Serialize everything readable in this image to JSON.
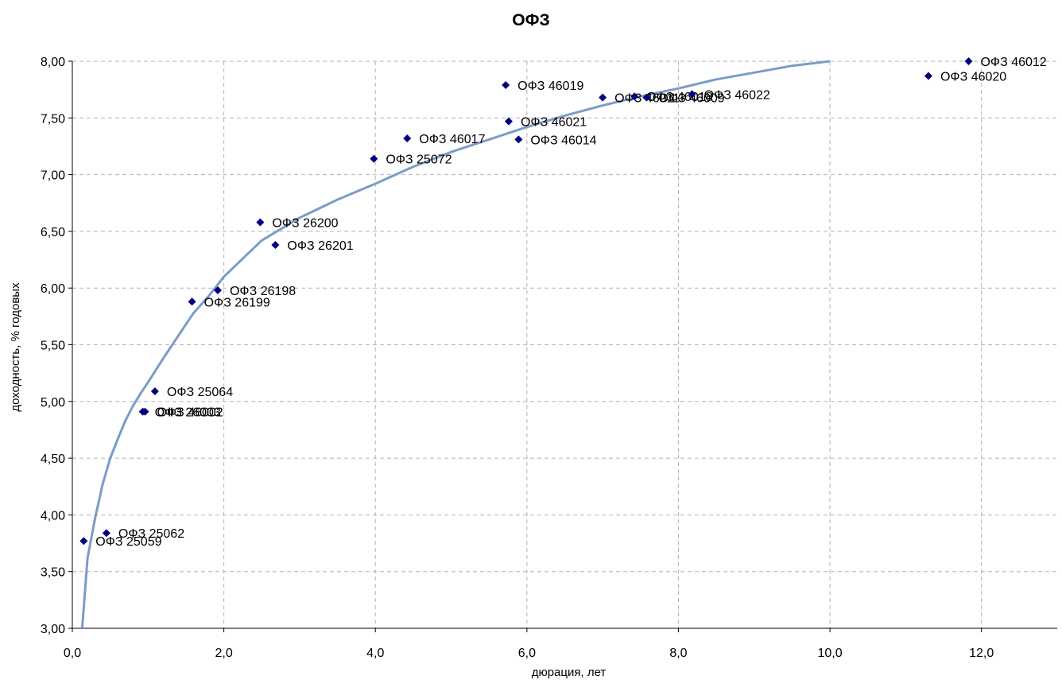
{
  "chart_data": {
    "type": "scatter",
    "title": "ОФЗ",
    "xlabel": "дюрация, лет",
    "ylabel": "доходность, % годовых",
    "xlim": [
      0,
      13
    ],
    "ylim": [
      3.0,
      8.0
    ],
    "x_ticks": [
      "0,0",
      "2,0",
      "4,0",
      "6,0",
      "8,0",
      "10,0",
      "12,0"
    ],
    "x_tick_values": [
      0,
      2,
      4,
      6,
      8,
      10,
      12
    ],
    "y_ticks": [
      "3,00",
      "3,50",
      "4,00",
      "4,50",
      "5,00",
      "5,50",
      "6,00",
      "6,50",
      "7,00",
      "7,50",
      "8,00"
    ],
    "y_tick_values": [
      3.0,
      3.5,
      4.0,
      4.5,
      5.0,
      5.5,
      6.0,
      6.5,
      7.0,
      7.5,
      8.0
    ],
    "grid": true,
    "colors": {
      "points": "#00007f",
      "trend": "#7b9cc7",
      "grid": "#b3b3b3"
    },
    "points": [
      {
        "label": "ОФЗ 25059",
        "x": 0.15,
        "y": 3.77
      },
      {
        "label": "ОФЗ 25062",
        "x": 0.45,
        "y": 3.84
      },
      {
        "label": "ОФЗ 26003",
        "x": 0.93,
        "y": 4.91
      },
      {
        "label": "ОФЗ 46002",
        "x": 0.96,
        "y": 4.91
      },
      {
        "label": "ОФЗ 25064",
        "x": 1.09,
        "y": 5.09
      },
      {
        "label": "ОФЗ 26199",
        "x": 1.58,
        "y": 5.88
      },
      {
        "label": "ОФЗ 26198",
        "x": 1.92,
        "y": 5.98
      },
      {
        "label": "ОФЗ 26200",
        "x": 2.48,
        "y": 6.58
      },
      {
        "label": "ОФЗ 26201",
        "x": 2.68,
        "y": 6.38
      },
      {
        "label": "ОФЗ 25072",
        "x": 3.98,
        "y": 7.14
      },
      {
        "label": "ОФЗ 46017",
        "x": 4.42,
        "y": 7.32
      },
      {
        "label": "ОФЗ 46019",
        "x": 5.72,
        "y": 7.79
      },
      {
        "label": "ОФЗ 46021",
        "x": 5.76,
        "y": 7.47
      },
      {
        "label": "ОФЗ 46014",
        "x": 5.89,
        "y": 7.31
      },
      {
        "label": "ОФЗ 46011",
        "x": 7.0,
        "y": 7.68
      },
      {
        "label": "ОФЗ 46018",
        "x": 7.42,
        "y": 7.69
      },
      {
        "label": "ОФЗ 46009",
        "x": 7.58,
        "y": 7.68
      },
      {
        "label": "ОФЗ 46022",
        "x": 8.18,
        "y": 7.71
      },
      {
        "label": "ОФЗ 46020",
        "x": 11.3,
        "y": 7.87
      },
      {
        "label": "ОФЗ 46012",
        "x": 11.83,
        "y": 8.0
      }
    ],
    "trend": {
      "type": "line",
      "x": [
        0.13,
        0.2,
        0.3,
        0.4,
        0.5,
        0.6,
        0.7,
        0.8,
        0.9,
        1.0,
        1.2,
        1.4,
        1.6,
        1.8,
        2.0,
        2.5,
        3.0,
        3.5,
        4.0,
        4.5,
        5.0,
        5.5,
        6.0,
        6.5,
        7.0,
        7.5,
        8.0,
        8.5,
        9.0,
        9.5,
        10.0
      ],
      "y": [
        3.0,
        3.62,
        3.97,
        4.27,
        4.5,
        4.67,
        4.83,
        4.96,
        5.07,
        5.17,
        5.38,
        5.58,
        5.78,
        5.93,
        6.1,
        6.42,
        6.62,
        6.78,
        6.92,
        7.07,
        7.2,
        7.31,
        7.42,
        7.52,
        7.61,
        7.69,
        7.76,
        7.84,
        7.9,
        7.96,
        8.0
      ]
    }
  }
}
